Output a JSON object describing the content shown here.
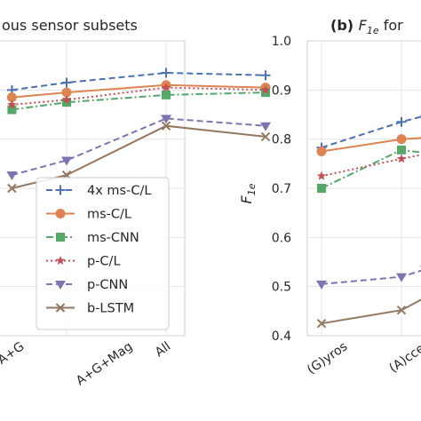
{
  "chart_data": [
    {
      "type": "line",
      "title": "ous sensor subsets",
      "categories": [
        "A+G",
        "A+G+Mag",
        "All"
      ],
      "ylim": [
        0.4,
        1.0
      ],
      "grid": true,
      "legend": "lower-right",
      "series": [
        {
          "name": "4x ms-C/L",
          "color": "#4c72b0",
          "marker": "plus",
          "dash": "7,4",
          "x": [
            -0.55,
            0,
            1,
            2
          ],
          "values": [
            0.9,
            0.915,
            0.935,
            0.93
          ]
        },
        {
          "name": "ms-C/L",
          "color": "#dd8452",
          "marker": "circle",
          "dash": "",
          "x": [
            -0.55,
            0,
            1,
            2
          ],
          "values": [
            0.885,
            0.895,
            0.91,
            0.905
          ]
        },
        {
          "name": "ms-CNN",
          "color": "#55a868",
          "marker": "square",
          "dash": "8,3,2,3",
          "x": [
            -0.55,
            0,
            1,
            2
          ],
          "values": [
            0.86,
            0.875,
            0.89,
            0.895
          ]
        },
        {
          "name": "p-C/L",
          "color": "#c44e52",
          "marker": "star",
          "dash": "2,3",
          "x": [
            -0.55,
            0,
            1,
            2
          ],
          "values": [
            0.87,
            0.88,
            0.905,
            0.9
          ]
        },
        {
          "name": "p-CNN",
          "color": "#8172b3",
          "marker": "triangle",
          "dash": "7,4",
          "x": [
            -0.55,
            0,
            1,
            2
          ],
          "values": [
            0.727,
            0.757,
            0.842,
            0.827
          ]
        },
        {
          "name": "b-LSTM",
          "color": "#937860",
          "marker": "x",
          "dash": "",
          "x": [
            -0.55,
            0,
            1,
            2
          ],
          "values": [
            0.7,
            0.727,
            0.827,
            0.805
          ]
        }
      ]
    },
    {
      "type": "line",
      "title": "(b) F1e for",
      "ylabel": "F1e",
      "categories": [
        "(G)yros",
        "(A)ccel"
      ],
      "ylim": [
        0.4,
        1.0
      ],
      "yticks": [
        "0.4",
        "0.5",
        "0.6",
        "0.7",
        "0.8",
        "0.9",
        "1.0"
      ],
      "grid": true,
      "series": [
        {
          "name": "4x ms-C/L",
          "color": "#4c72b0",
          "marker": "plus",
          "dash": "7,4",
          "x": [
            0,
            1,
            1.3
          ],
          "values": [
            0.783,
            0.835,
            0.848
          ]
        },
        {
          "name": "ms-C/L",
          "color": "#dd8452",
          "marker": "circle",
          "dash": "",
          "x": [
            0,
            1,
            1.3
          ],
          "values": [
            0.775,
            0.8,
            0.803
          ]
        },
        {
          "name": "ms-CNN",
          "color": "#55a868",
          "marker": "square",
          "dash": "8,3,2,3",
          "x": [
            0,
            1,
            1.3
          ],
          "values": [
            0.7,
            0.778,
            0.772
          ]
        },
        {
          "name": "p-C/L",
          "color": "#c44e52",
          "marker": "star",
          "dash": "2,3",
          "x": [
            0,
            1,
            1.3
          ],
          "values": [
            0.725,
            0.76,
            0.77
          ]
        },
        {
          "name": "p-CNN",
          "color": "#8172b3",
          "marker": "triangle",
          "dash": "7,4",
          "x": [
            0,
            1,
            1.3
          ],
          "values": [
            0.505,
            0.52,
            0.535
          ]
        },
        {
          "name": "b-LSTM",
          "color": "#937860",
          "marker": "x",
          "dash": "",
          "x": [
            0,
            1,
            1.3
          ],
          "values": [
            0.425,
            0.452,
            0.478
          ]
        }
      ]
    }
  ]
}
